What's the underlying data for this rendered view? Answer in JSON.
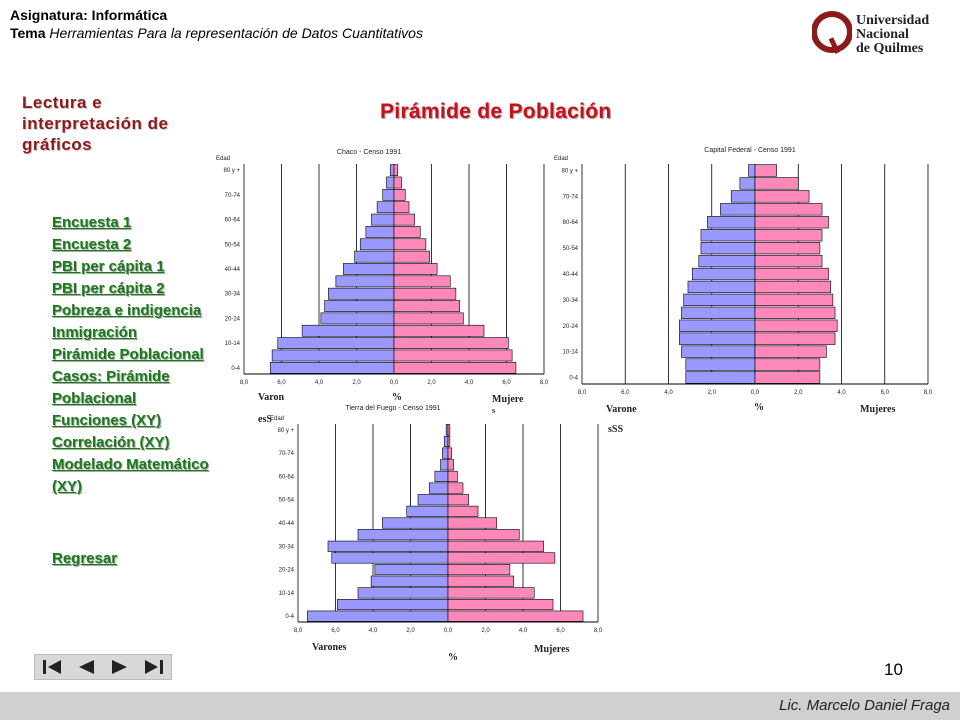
{
  "header": {
    "subject_label": "Asignatura: Informática",
    "subject_colon": ":",
    "topic_label": "Tema",
    "topic_text": " Herramientas Para la representación de Datos Cuantitativos"
  },
  "logo": {
    "line1": "Universidad",
    "line2": "Nacional",
    "line3": "de Quilmes",
    "brand_color": "#8b1a1a"
  },
  "section_title": "Lectura e interpretación de gráficos",
  "main_title": "Pirámide de Población",
  "nav": {
    "items": [
      "Encuesta 1",
      "Encuesta 2",
      "PBI per cápita 1",
      "PBI per cápita 2",
      "Pobreza e indigencia",
      "Inmigración",
      "Pirámide Poblacional",
      "Casos: Pirámide Poblacional",
      "Funciones (XY)",
      "Correlación (XY)",
      "Modelado Matemático (XY)"
    ],
    "back": "Regresar",
    "color": "#1a7a1a"
  },
  "controls": {
    "icons": [
      "first-icon",
      "prev-icon",
      "next-icon",
      "last-icon"
    ]
  },
  "page_number": "10",
  "footer": "Lic. Marcelo Daniel Fraga",
  "chart_data": [
    {
      "type": "bar",
      "title": "Chaco - Censo 1991",
      "y_axis_title": "Edad",
      "categories": [
        "0-4",
        "5-9",
        "10-14",
        "15-19",
        "20-24",
        "25-29",
        "30-34",
        "35-39",
        "40-44",
        "45-49",
        "50-54",
        "55-59",
        "60-64",
        "65-69",
        "70-74",
        "75-79",
        "80 y +"
      ],
      "category_labels": [
        "0-4",
        "10-14",
        "20-24",
        "30-34",
        "40-44",
        "50-54",
        "60-64",
        "70-74",
        "80 y +"
      ],
      "series": [
        {
          "name": "Varones",
          "values": [
            6.6,
            6.5,
            6.2,
            4.9,
            3.9,
            3.7,
            3.5,
            3.1,
            2.7,
            2.1,
            1.8,
            1.5,
            1.2,
            0.9,
            0.6,
            0.4,
            0.2
          ],
          "color": "#9999ff"
        },
        {
          "name": "Mujeres",
          "values": [
            6.5,
            6.3,
            6.1,
            4.8,
            3.7,
            3.5,
            3.3,
            3.0,
            2.3,
            1.9,
            1.7,
            1.4,
            1.1,
            0.8,
            0.6,
            0.4,
            0.2
          ],
          "color": "#ff88bb"
        }
      ],
      "x_ticks": [
        "8,0",
        "6,0",
        "4,0",
        "2,0",
        "0,0",
        "2,0",
        "4,0",
        "6,0",
        "8,0"
      ],
      "xlim": [
        -8,
        8
      ],
      "labels": {
        "left": "Varon",
        "left2": "esS",
        "center": "%",
        "right": "Mujere",
        "right2": "s"
      }
    },
    {
      "type": "bar",
      "title": "Capital Federal - Censo 1991",
      "y_axis_title": "Edad",
      "categories": [
        "0-4",
        "5-9",
        "10-14",
        "15-19",
        "20-24",
        "25-29",
        "30-34",
        "35-39",
        "40-44",
        "45-49",
        "50-54",
        "55-59",
        "60-64",
        "65-69",
        "70-74",
        "75-79",
        "80 y +"
      ],
      "category_labels": [
        "0-4",
        "10-14",
        "20-24",
        "30-34",
        "40-44",
        "50-54",
        "60-64",
        "70-74",
        "80 y +"
      ],
      "series": [
        {
          "name": "Varones",
          "values": [
            3.2,
            3.2,
            3.4,
            3.5,
            3.5,
            3.4,
            3.3,
            3.1,
            2.9,
            2.6,
            2.5,
            2.5,
            2.2,
            1.6,
            1.1,
            0.7,
            0.3
          ],
          "color": "#9999ff"
        },
        {
          "name": "Mujeres",
          "values": [
            3.0,
            3.0,
            3.3,
            3.7,
            3.8,
            3.7,
            3.6,
            3.5,
            3.4,
            3.1,
            3.0,
            3.1,
            3.4,
            3.1,
            2.5,
            2.0,
            1.0
          ],
          "color": "#ff88bb"
        }
      ],
      "x_ticks": [
        "8,0",
        "6,0",
        "4,0",
        "2,0",
        "0,0",
        "2,0",
        "4,0",
        "6,0",
        "8,0"
      ],
      "xlim": [
        -8,
        8
      ],
      "labels": {
        "left": "Varone",
        "left2": "sSS",
        "center": "%",
        "right": "Mujeres"
      }
    },
    {
      "type": "bar",
      "title": "Tierra del Fuego - Censo 1991",
      "y_axis_title": "Edad",
      "categories": [
        "0-4",
        "5-9",
        "10-14",
        "15-19",
        "20-24",
        "25-29",
        "30-34",
        "35-39",
        "40-44",
        "45-49",
        "50-54",
        "55-59",
        "60-64",
        "65-69",
        "70-74",
        "75-79",
        "80 y +"
      ],
      "category_labels": [
        "0-4",
        "10-14",
        "20-24",
        "30-34",
        "40-44",
        "50-54",
        "60-64",
        "70-74",
        "80 y +"
      ],
      "series": [
        {
          "name": "Varones",
          "values": [
            7.5,
            5.9,
            4.8,
            4.1,
            3.9,
            6.2,
            6.4,
            4.8,
            3.5,
            2.2,
            1.6,
            1.0,
            0.7,
            0.4,
            0.3,
            0.2,
            0.1
          ],
          "color": "#9999ff"
        },
        {
          "name": "Mujeres",
          "values": [
            7.2,
            5.6,
            4.6,
            3.5,
            3.3,
            5.7,
            5.1,
            3.8,
            2.6,
            1.6,
            1.1,
            0.8,
            0.5,
            0.3,
            0.2,
            0.1,
            0.1
          ],
          "color": "#ff88bb"
        }
      ],
      "x_ticks": [
        "8,0",
        "6,0",
        "4,0",
        "2,0",
        "0,0",
        "2,0",
        "4,0",
        "6,0",
        "8,0"
      ],
      "xlim": [
        -8,
        8
      ],
      "labels": {
        "left": "Varones",
        "center": "%",
        "right": "Mujeres"
      }
    }
  ]
}
